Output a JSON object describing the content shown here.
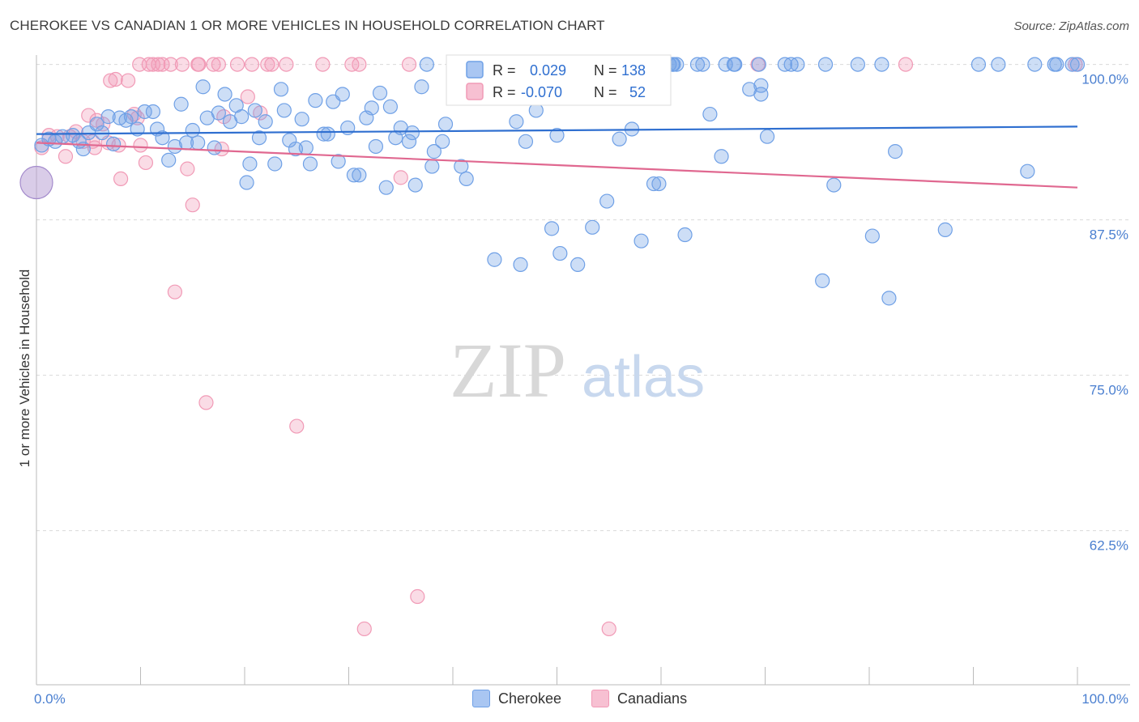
{
  "header": {
    "title": "CHEROKEE VS CANADIAN 1 OR MORE VEHICLES IN HOUSEHOLD CORRELATION CHART",
    "source": "Source: ZipAtlas.com"
  },
  "watermark": {
    "zip": "ZIP",
    "atlas": "atlas"
  },
  "legend_box": {
    "row1": {
      "r_label": "R =",
      "r_value": "0.029",
      "n_label": "N =",
      "n_value": "138"
    },
    "row2": {
      "r_label": "R =",
      "r_value": "-0.070",
      "n_label": "N =",
      "n_value": "52"
    }
  },
  "chart_data": {
    "type": "scatter",
    "title": "CHEROKEE VS CANADIAN 1 OR MORE VEHICLES IN HOUSEHOLD CORRELATION CHART",
    "xlabel": "",
    "ylabel": "1 or more Vehicles in Household",
    "xlim": [
      0,
      100
    ],
    "ylim": [
      50,
      102.5
    ],
    "x_tick_labels": [
      "0.0%",
      "100.0%"
    ],
    "y_ticks": [
      62.5,
      75.0,
      87.5,
      100.0
    ],
    "y_tick_labels": [
      "62.5%",
      "75.0%",
      "87.5%",
      "100.0%"
    ],
    "grid": "dashed horizontal",
    "legend_position": "bottom-center",
    "colors": {
      "cherokee": "#6fa0e6",
      "canadians": "#f19ab6",
      "cherokee_line": "#2f6fd0",
      "canadians_line": "#e06890",
      "tick": "#4a7fd0"
    },
    "series": [
      {
        "name": "Cherokee",
        "r": 0.029,
        "n": 138,
        "trend": {
          "x": [
            0,
            100
          ],
          "y": [
            94.4,
            95.0
          ]
        },
        "points": [
          [
            0.5,
            93.5
          ],
          [
            1.2,
            94
          ],
          [
            1.8,
            93.8
          ],
          [
            2.5,
            94.2
          ],
          [
            3.5,
            94.3
          ],
          [
            4.1,
            93.8
          ],
          [
            4.5,
            93.2
          ],
          [
            5,
            94.5
          ],
          [
            5.8,
            95.2
          ],
          [
            6.3,
            94.5
          ],
          [
            6.9,
            95.8
          ],
          [
            7.4,
            93.6
          ],
          [
            8,
            95.7
          ],
          [
            8.6,
            95.5
          ],
          [
            9.1,
            95.8
          ],
          [
            9.7,
            94.8
          ],
          [
            10.4,
            96.2
          ],
          [
            11.2,
            96.2
          ],
          [
            11.6,
            94.8
          ],
          [
            12.1,
            94.1
          ],
          [
            12.7,
            92.3
          ],
          [
            13.3,
            93.4
          ],
          [
            13.9,
            96.8
          ],
          [
            14.4,
            93.7
          ],
          [
            15,
            94.7
          ],
          [
            15.5,
            93.7
          ],
          [
            16,
            98.2
          ],
          [
            16.4,
            95.7
          ],
          [
            17.1,
            93.3
          ],
          [
            17.5,
            96.1
          ],
          [
            18.1,
            97.6
          ],
          [
            18.6,
            95.4
          ],
          [
            19.2,
            96.7
          ],
          [
            19.7,
            95.8
          ],
          [
            20.2,
            90.5
          ],
          [
            20.5,
            92
          ],
          [
            21,
            96.3
          ],
          [
            21.4,
            94.1
          ],
          [
            22,
            95.4
          ],
          [
            22.9,
            92
          ],
          [
            23.5,
            98
          ],
          [
            23.8,
            96.3
          ],
          [
            24.3,
            93.9
          ],
          [
            24.9,
            93.2
          ],
          [
            25.5,
            95.6
          ],
          [
            25.9,
            93.3
          ],
          [
            26.3,
            92
          ],
          [
            26.8,
            97.1
          ],
          [
            27.6,
            94.4
          ],
          [
            28,
            94.4
          ],
          [
            28.5,
            97
          ],
          [
            29,
            92.2
          ],
          [
            29.4,
            97.6
          ],
          [
            29.9,
            94.9
          ],
          [
            30.5,
            91.1
          ],
          [
            31,
            91.1
          ],
          [
            31.7,
            95.7
          ],
          [
            32.2,
            96.5
          ],
          [
            32.6,
            93.4
          ],
          [
            33,
            97.7
          ],
          [
            33.6,
            90.1
          ],
          [
            34,
            96.6
          ],
          [
            34.5,
            94.1
          ],
          [
            35,
            94.9
          ],
          [
            35.8,
            93.8
          ],
          [
            36.1,
            94.5
          ],
          [
            36.4,
            90.3
          ],
          [
            37,
            98.2
          ],
          [
            38.2,
            93
          ],
          [
            38,
            91.8
          ],
          [
            39,
            93.8
          ],
          [
            39.3,
            95.2
          ],
          [
            40.8,
            91.8
          ],
          [
            41.3,
            90.8
          ],
          [
            42.5,
            98.3
          ],
          [
            44,
            84.3
          ],
          [
            44.5,
            97.9
          ],
          [
            46.1,
            95.4
          ],
          [
            46.5,
            83.9
          ],
          [
            47,
            93.8
          ],
          [
            47.4,
            100
          ],
          [
            48,
            96.3
          ],
          [
            48,
            100
          ],
          [
            49.5,
            86.8
          ],
          [
            50,
            94.3
          ],
          [
            50.3,
            84.8
          ],
          [
            51.5,
            97.4
          ],
          [
            51.7,
            100
          ],
          [
            52,
            83.9
          ],
          [
            53.4,
            86.9
          ],
          [
            53,
            100
          ],
          [
            53.3,
            100
          ],
          [
            54.8,
            89
          ],
          [
            56,
            94
          ],
          [
            57.2,
            94.8
          ],
          [
            58.1,
            85.8
          ],
          [
            59.3,
            90.4
          ],
          [
            59.8,
            90.4
          ],
          [
            60.8,
            100
          ],
          [
            61.1,
            100
          ],
          [
            61.5,
            100
          ],
          [
            62.3,
            86.3
          ],
          [
            64,
            100
          ],
          [
            64.7,
            96
          ],
          [
            65.8,
            92.6
          ],
          [
            66.2,
            100
          ],
          [
            67.1,
            100
          ],
          [
            68.5,
            98
          ],
          [
            69.4,
            100
          ],
          [
            69.6,
            97.6
          ],
          [
            69.6,
            98.3
          ],
          [
            70.2,
            94.2
          ],
          [
            71.9,
            100
          ],
          [
            73.1,
            100
          ],
          [
            75.5,
            82.6
          ],
          [
            75.8,
            100
          ],
          [
            76.6,
            90.3
          ],
          [
            80.3,
            86.2
          ],
          [
            81.2,
            100
          ],
          [
            81.9,
            81.2
          ],
          [
            82.5,
            93
          ],
          [
            87.3,
            86.7
          ],
          [
            90.5,
            100
          ],
          [
            95.2,
            91.4
          ],
          [
            95.9,
            100
          ],
          [
            98,
            100
          ],
          [
            99.5,
            100
          ],
          [
            100,
            100
          ],
          [
            37.5,
            100
          ],
          [
            40.5,
            100
          ],
          [
            42.3,
            100
          ],
          [
            44,
            100
          ],
          [
            48,
            100
          ],
          [
            50.4,
            100
          ],
          [
            56,
            100
          ],
          [
            58.5,
            100
          ],
          [
            63.5,
            100
          ],
          [
            72.5,
            100
          ],
          [
            78.9,
            100
          ],
          [
            92.4,
            100
          ],
          [
            97.8,
            100
          ],
          [
            45.3,
            100
          ],
          [
            43.6,
            100
          ],
          [
            61.2,
            100
          ],
          [
            67,
            100
          ]
        ],
        "big_point": [
          0,
          90.5
        ]
      },
      {
        "name": "Canadians",
        "r": -0.07,
        "n": 52,
        "trend": {
          "x": [
            0,
            100
          ],
          "y": [
            93.7,
            90.1
          ]
        },
        "points": [
          [
            0.5,
            93.3
          ],
          [
            1.2,
            94.3
          ],
          [
            2,
            94.2
          ],
          [
            2.8,
            92.6
          ],
          [
            3.2,
            94.2
          ],
          [
            3.8,
            94.6
          ],
          [
            4.5,
            93.8
          ],
          [
            5,
            95.9
          ],
          [
            5.4,
            93.8
          ],
          [
            5.6,
            93.3
          ],
          [
            5.8,
            95.5
          ],
          [
            6.4,
            95.2
          ],
          [
            6.9,
            93.7
          ],
          [
            7.1,
            98.7
          ],
          [
            7.6,
            98.8
          ],
          [
            7.9,
            93.5
          ],
          [
            8.1,
            90.8
          ],
          [
            8.8,
            98.7
          ],
          [
            9.4,
            96
          ],
          [
            9.7,
            95.7
          ],
          [
            10,
            93.5
          ],
          [
            10.5,
            92.1
          ],
          [
            10.8,
            100
          ],
          [
            11.2,
            100
          ],
          [
            11.7,
            100
          ],
          [
            12.1,
            100
          ],
          [
            13.3,
            81.7
          ],
          [
            14,
            100
          ],
          [
            14.5,
            91.6
          ],
          [
            15,
            88.7
          ],
          [
            15.5,
            100
          ],
          [
            15.6,
            100
          ],
          [
            16.3,
            72.8
          ],
          [
            17,
            100
          ],
          [
            17.5,
            100
          ],
          [
            17.8,
            93.2
          ],
          [
            19.3,
            100
          ],
          [
            20.3,
            97.4
          ],
          [
            20.7,
            100
          ],
          [
            21.5,
            96.1
          ],
          [
            22.2,
            100
          ],
          [
            22.6,
            100
          ],
          [
            24,
            100
          ],
          [
            25,
            70.9
          ],
          [
            27.5,
            100
          ],
          [
            30.3,
            100
          ],
          [
            31,
            100
          ],
          [
            31.5,
            54.6
          ],
          [
            35,
            90.9
          ],
          [
            35.8,
            100
          ],
          [
            36.6,
            57.2
          ],
          [
            40.4,
            100
          ],
          [
            55,
            54.6
          ],
          [
            56.5,
            100
          ],
          [
            69.3,
            100
          ],
          [
            83.5,
            100
          ],
          [
            99.8,
            100
          ],
          [
            18,
            95.8
          ],
          [
            9.9,
            100
          ],
          [
            12.9,
            100
          ],
          [
            40.6,
            100
          ],
          [
            56.7,
            100
          ]
        ]
      }
    ]
  },
  "bottom_legend": {
    "cherokee_label": "Cherokee",
    "canadians_label": "Canadians"
  }
}
